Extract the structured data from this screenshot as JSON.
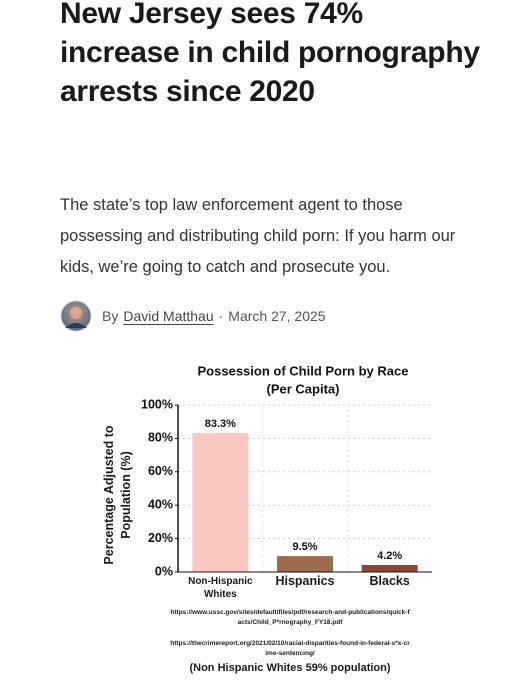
{
  "article": {
    "headline": "New Jersey sees 74% increase in child pornography arrests since 2020",
    "dek": "The state’s top law enforcement agent to those possessing and distributing child porn: If you harm our kids, we’re going to catch and prosecute you.",
    "byline": {
      "prefix": "By",
      "author": "David Matthau",
      "separator": "·",
      "date": "March 27, 2025"
    }
  },
  "chart_data": {
    "type": "bar",
    "title": "Possession of Child Porn by Race",
    "subtitle": "(Per Capita)",
    "y_label": "Percentage Adjusted to Population (%)",
    "categories": [
      "Non-Hispanic Whites",
      "Hispanics",
      "Blacks"
    ],
    "values": [
      83.3,
      9.5,
      4.2
    ],
    "value_labels": [
      "83.3%",
      "9.5%",
      "4.2%"
    ],
    "colors": [
      "#f9c8c1",
      "#9c6a4c",
      "#8a4638"
    ],
    "ylim": [
      0,
      100
    ],
    "yticks": [
      {
        "value": 0,
        "label": "0%"
      },
      {
        "value": 20,
        "label": "20%"
      },
      {
        "value": 40,
        "label": "40%"
      },
      {
        "value": 60,
        "label": "60%"
      },
      {
        "value": 80,
        "label": "80%"
      },
      {
        "value": 100,
        "label": "100%"
      }
    ],
    "grid": true,
    "sources": [
      "https://www.ussc.gov/sites/default/files/pdf/research-and-publications/quick-facts/Child_P*rnography_FY18.pdf",
      "https://thecrimereport.org/2021/02/10/racial-disparities-found-in-federal-s*x-crime-sentencing/"
    ],
    "footnote": "(Non Hispanic Whites 59% population)"
  }
}
